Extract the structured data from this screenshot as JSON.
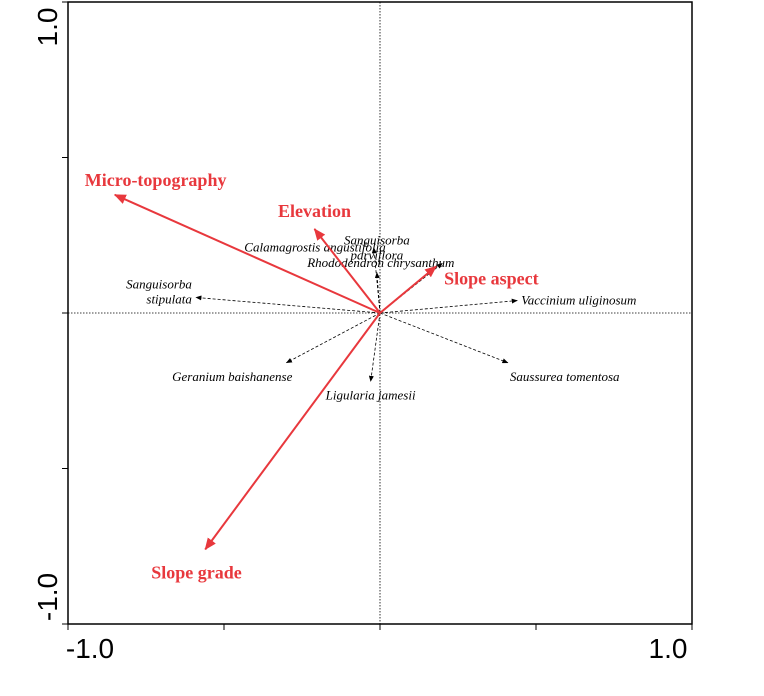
{
  "chart_data": {
    "type": "biplot",
    "xlim": [
      -1.0,
      1.0
    ],
    "ylim": [
      -1.0,
      1.0
    ],
    "x_tick_labels": [
      "-1.0",
      "1.0"
    ],
    "y_tick_labels": [
      "-1.0",
      "1.0"
    ],
    "env_color": "#e8383d",
    "environmental_variables": [
      {
        "name": "Micro-topography",
        "x": -0.85,
        "y": 0.38
      },
      {
        "name": "Elevation",
        "x": -0.21,
        "y": 0.27
      },
      {
        "name": "Slope aspect",
        "x": 0.18,
        "y": 0.15
      },
      {
        "name": "Slope grade",
        "x": -0.56,
        "y": -0.76
      }
    ],
    "species": [
      {
        "lines": [
          "Calamagrostis  angustifolia"
        ],
        "x": -0.02,
        "y": 0.21
      },
      {
        "lines": [
          "Sanguisorba",
          "parviflora"
        ],
        "x": -0.01,
        "y": 0.13
      },
      {
        "lines": [
          "Rhododendron chrysanthum"
        ],
        "x": 0.2,
        "y": 0.16
      },
      {
        "lines": [
          "Sanguisorba",
          "stipulata"
        ],
        "x": -0.59,
        "y": 0.05
      },
      {
        "lines": [
          "Vaccinium uliginosum"
        ],
        "x": 0.44,
        "y": 0.04
      },
      {
        "lines": [
          "Geranium baishanense"
        ],
        "x": -0.3,
        "y": -0.16
      },
      {
        "lines": [
          "Ligularia jamesii"
        ],
        "x": -0.03,
        "y": -0.22
      },
      {
        "lines": [
          "Saussurea tomentosa"
        ],
        "x": 0.41,
        "y": -0.16
      }
    ]
  }
}
